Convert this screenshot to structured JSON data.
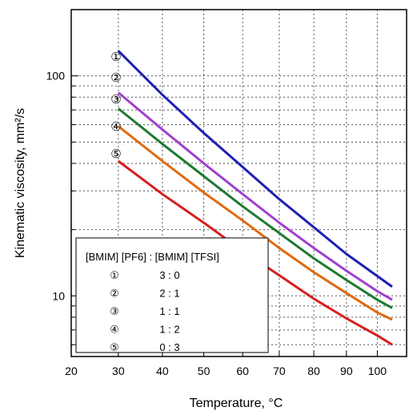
{
  "chart_data": {
    "type": "line",
    "title": "",
    "xlabel": "Temperature, °C",
    "ylabel": "Kinematic viscosity, mm²/s",
    "x_scale": "reciprocal",
    "y_scale": "log",
    "xlim": [
      20,
      110
    ],
    "ylim": [
      5.3,
      200
    ],
    "x_tick_labels": [
      "20",
      "30",
      "40",
      "50",
      "60",
      "70",
      "80",
      "90",
      "100"
    ],
    "x_ticks": [
      20,
      30,
      40,
      50,
      60,
      70,
      80,
      90,
      100
    ],
    "y_tick_labels": [
      "10",
      "100"
    ],
    "y_ticks": [
      10,
      100
    ],
    "grid": "dotted major and minor gridlines",
    "legend": {
      "placement": "lower-left",
      "header": "[BMIM] [PF6] : [BMIM] [TFSI]",
      "rows": [
        {
          "marker": "①",
          "ratio": "3 : 0"
        },
        {
          "marker": "②",
          "ratio": "2 : 1"
        },
        {
          "marker": "③",
          "ratio": "1 : 1"
        },
        {
          "marker": "④",
          "ratio": "1 : 2"
        },
        {
          "marker": "⑤",
          "ratio": "0 : 3"
        }
      ]
    },
    "curve_labels": [
      "①",
      "②",
      "③",
      "④",
      "⑤"
    ],
    "series": [
      {
        "marker": "①",
        "color": "#1f1fb4",
        "x": [
          30,
          40,
          50,
          60,
          70,
          80,
          90,
          100,
          105
        ],
        "values": [
          130,
          82,
          55,
          38.5,
          27.5,
          20.5,
          15.5,
          12.3,
          11
        ]
      },
      {
        "marker": "②",
        "color": "#a040d0",
        "x": [
          30,
          40,
          50,
          60,
          70,
          80,
          90,
          100,
          105
        ],
        "values": [
          84,
          57,
          40,
          29,
          21.5,
          16.5,
          13,
          10.5,
          9.6
        ]
      },
      {
        "marker": "③",
        "color": "#1e7a2e",
        "x": [
          30,
          40,
          50,
          60,
          70,
          80,
          90,
          100,
          105
        ],
        "values": [
          71,
          49,
          35,
          25.5,
          19.3,
          14.8,
          11.8,
          9.6,
          8.8
        ]
      },
      {
        "marker": "④",
        "color": "#e06a10",
        "x": [
          30,
          40,
          50,
          60,
          70,
          80,
          90,
          100,
          105
        ],
        "values": [
          59,
          41,
          29.5,
          22,
          16.5,
          12.8,
          10.3,
          8.4,
          7.8
        ]
      },
      {
        "marker": "⑤",
        "color": "#d81e1e",
        "x": [
          30,
          40,
          50,
          60,
          70,
          80,
          90,
          100,
          105
        ],
        "values": [
          41,
          29,
          21.5,
          16,
          12.4,
          9.7,
          7.9,
          6.6,
          6.0
        ]
      }
    ]
  }
}
